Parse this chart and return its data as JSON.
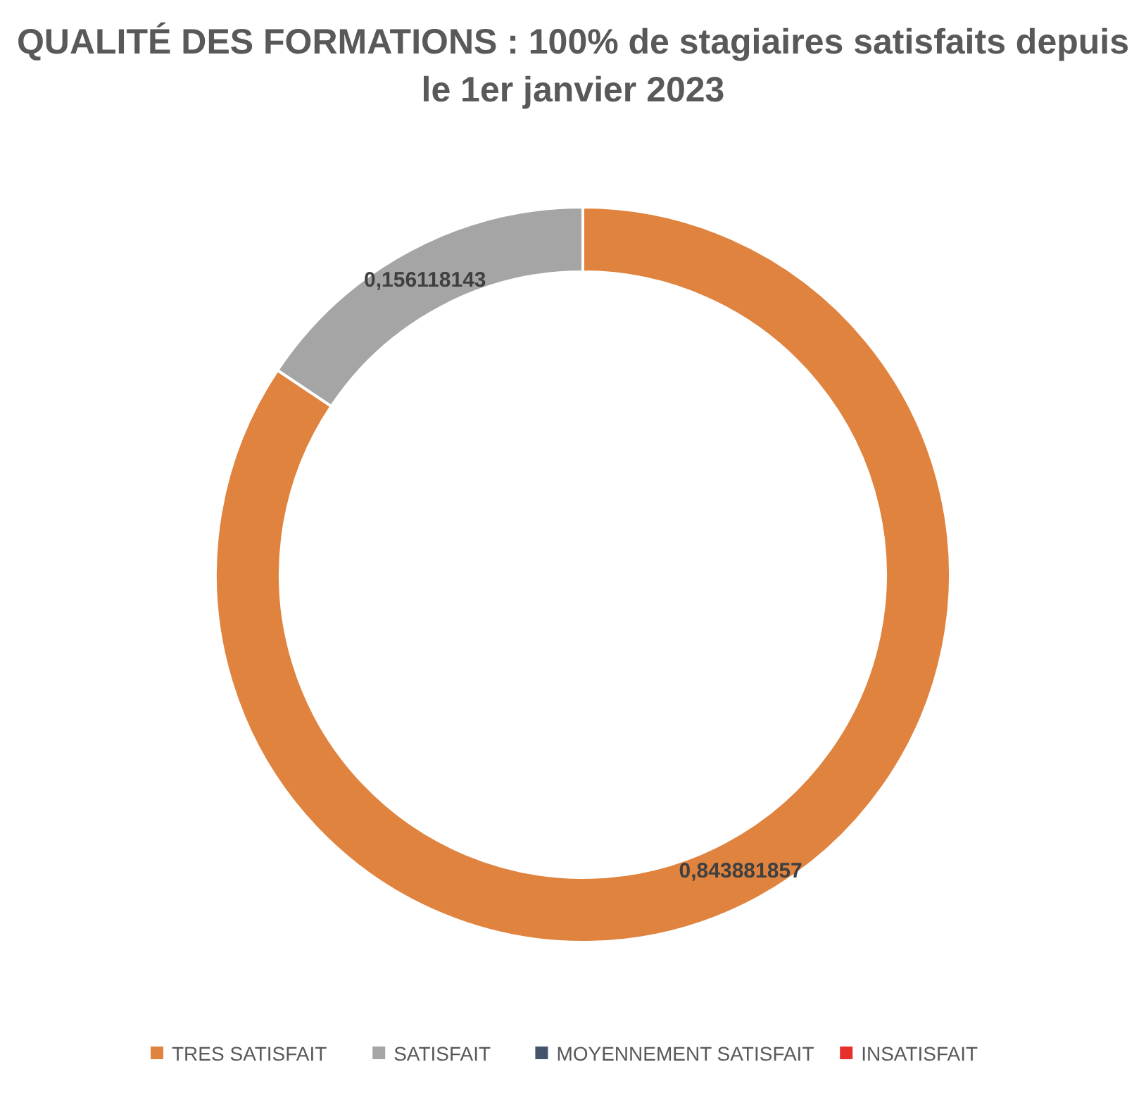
{
  "chart_data": {
    "type": "donut",
    "title": "QUALITÉ DES FORMATIONS :  100% de stagiaires satisfaits depuis le 1er janvier 2023",
    "categories": [
      "TRES SATISFAIT",
      "SATISFAIT",
      "MOYENNEMENT SATISFAIT",
      "INSATISFAIT"
    ],
    "values": [
      0.843881857,
      0.156118143,
      0,
      0
    ],
    "colors": [
      "#e0833f",
      "#a5a5a5",
      "#44546a",
      "#e8302a"
    ],
    "value_labels": [
      "0,843881857",
      "0,156118143",
      null,
      null
    ],
    "legend": "bottom"
  }
}
